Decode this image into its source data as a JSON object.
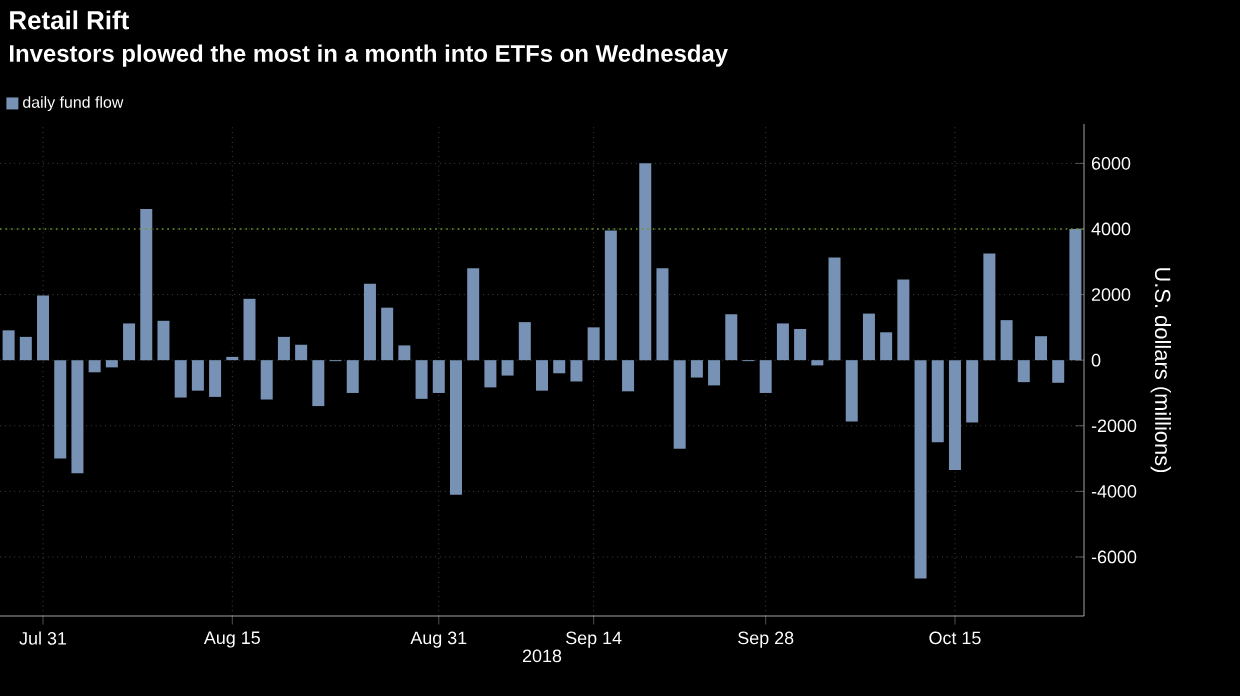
{
  "chart_data": {
    "type": "bar",
    "title": "Retail Rift",
    "subtitle": "Investors plowed the most in a month into ETFs on Wednesday",
    "xlabel": "2018",
    "ylabel": "U.S. dollars (millions)",
    "categories": [
      null,
      null,
      "Jul 31",
      null,
      null,
      null,
      null,
      null,
      null,
      null,
      null,
      null,
      null,
      "Aug 15",
      null,
      null,
      null,
      null,
      null,
      null,
      null,
      null,
      null,
      null,
      null,
      "Aug 31",
      null,
      null,
      null,
      null,
      null,
      null,
      null,
      null,
      "Sep 14",
      null,
      null,
      null,
      null,
      null,
      null,
      null,
      null,
      null,
      "Sep 28",
      null,
      null,
      null,
      null,
      null,
      null,
      null,
      null,
      null,
      null,
      "Oct 15",
      null,
      null,
      null,
      null,
      null,
      null,
      null
    ],
    "series": [
      {
        "name": "daily fund flow",
        "color": "#7892b5",
        "values": [
          910,
          710,
          1970,
          -3000,
          -3450,
          -370,
          -220,
          1120,
          4610,
          1200,
          -1140,
          -930,
          -1120,
          100,
          1870,
          -1200,
          710,
          470,
          -1400,
          -30,
          -1000,
          2330,
          1600,
          450,
          -1180,
          -1000,
          -4100,
          2800,
          -830,
          -470,
          1160,
          -930,
          -400,
          -650,
          1000,
          3950,
          -950,
          6000,
          2800,
          -2700,
          -530,
          -770,
          1400,
          -30,
          -1000,
          1120,
          950,
          -160,
          3130,
          -1870,
          1420,
          850,
          2460,
          -6660,
          -2500,
          -3350,
          -1900,
          3250,
          1220,
          -670,
          730,
          -690,
          4000
        ]
      }
    ],
    "ylim": [
      -7800,
      7200
    ],
    "yticks": [
      -6000,
      -4000,
      -2000,
      0,
      2000,
      4000,
      6000
    ],
    "grid": true,
    "legend": "top left",
    "ref_lines": [
      {
        "axis": "y",
        "value": 4000,
        "color": "#6a9a1f",
        "line_style": "dotted"
      }
    ]
  }
}
